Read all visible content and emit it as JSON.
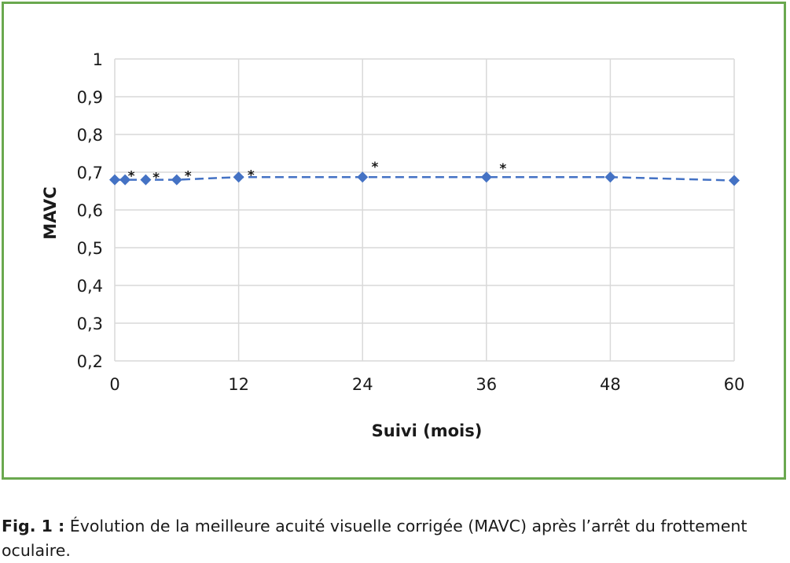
{
  "chart_data": {
    "type": "line",
    "xlabel": "Suivi (mois)",
    "ylabel": "MAVC",
    "xlim": [
      0,
      60
    ],
    "ylim": [
      0.2,
      1
    ],
    "xticks": [
      0,
      12,
      24,
      36,
      48,
      60
    ],
    "xtick_labels": [
      "0",
      "12",
      "24",
      "36",
      "48",
      "60"
    ],
    "yticks": [
      0.2,
      0.3,
      0.4,
      0.5,
      0.6,
      0.7,
      0.8,
      0.9,
      1
    ],
    "ytick_labels": [
      "0,2",
      "0,3",
      "0,4",
      "0,5",
      "0,6",
      "0,7",
      "0,8",
      "0,9",
      "1"
    ],
    "grid": true,
    "series": [
      {
        "x": [
          0,
          1,
          3,
          6,
          12,
          24,
          36,
          48,
          60
        ],
        "y": [
          0.68,
          0.68,
          0.68,
          0.68,
          0.687,
          0.687,
          0.687,
          0.687,
          0.678
        ],
        "color": "#4472c4",
        "line_style": "dashed",
        "marker": "diamond"
      }
    ],
    "annotations": [
      {
        "text": "*",
        "x": 1.6,
        "y": 0.703
      },
      {
        "text": "*",
        "x": 4,
        "y": 0.699
      },
      {
        "text": "*",
        "x": 7.1,
        "y": 0.703
      },
      {
        "text": "*",
        "x": 13.2,
        "y": 0.705
      },
      {
        "text": "*",
        "x": 25.2,
        "y": 0.727
      },
      {
        "text": "*",
        "x": 37.6,
        "y": 0.723
      }
    ]
  },
  "caption": {
    "lead": "Fig. 1 :",
    "text": " Évolution de la meilleure acuité visuelle corrigée (MAVC) après l’arrêt du frottement oculaire."
  },
  "colors": {
    "frame_border": "#6aa84f",
    "gridline": "#d9d9d9",
    "series": "#4472c4"
  }
}
